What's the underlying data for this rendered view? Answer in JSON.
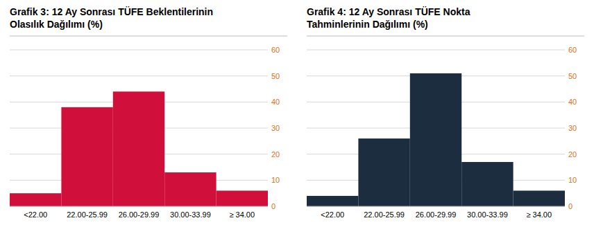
{
  "chart_data": [
    {
      "type": "bar",
      "title": "Grafik 3: 12 Ay Sonrası TÜFE Beklentilerinin",
      "subtitle": "Olasılık Dağılımı (%)",
      "categories": [
        "<22.00",
        "22.00-25.99",
        "26.00-29.99",
        "30.00-33.99",
        "≥ 34.00"
      ],
      "values": [
        5,
        38,
        44,
        13,
        6
      ],
      "color": "#d0103a",
      "ylim": [
        0,
        60
      ],
      "yticks": [
        0,
        10,
        20,
        30,
        40,
        50,
        60
      ],
      "grid": true
    },
    {
      "type": "bar",
      "title": "Grafik 4: 12 Ay Sonrası TÜFE Nokta",
      "subtitle": "Tahminlerinin Dağılımı (%)",
      "categories": [
        "<22.00",
        "22.00-25.99",
        "26.00-29.99",
        "30.00-33.99",
        "≥ 34.00"
      ],
      "values": [
        4,
        26,
        51,
        17,
        6
      ],
      "color": "#1c2d3f",
      "ylim": [
        0,
        60
      ],
      "yticks": [
        0,
        10,
        20,
        30,
        40,
        50,
        60
      ],
      "grid": true
    }
  ]
}
